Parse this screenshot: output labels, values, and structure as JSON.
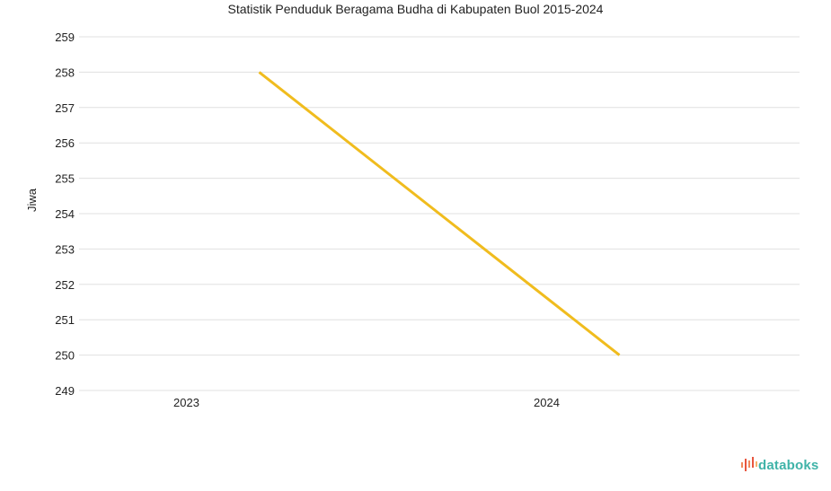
{
  "chart_data": {
    "type": "line",
    "title": "Statistik Penduduk Beragama Budha di Kabupaten Buol 2015-2024",
    "xlabel": "",
    "ylabel": "Jiwa",
    "categories": [
      "2023",
      "2024"
    ],
    "series": [
      {
        "name": "Jiwa",
        "values": [
          258,
          250
        ],
        "color": "#f0bc1e"
      }
    ],
    "ylim": [
      249,
      259
    ],
    "yticks": [
      249,
      250,
      251,
      252,
      253,
      254,
      255,
      256,
      257,
      258,
      259
    ],
    "grid": true,
    "legend": "none"
  },
  "brand": {
    "name": "databoks",
    "color": "#3fb3a8"
  }
}
